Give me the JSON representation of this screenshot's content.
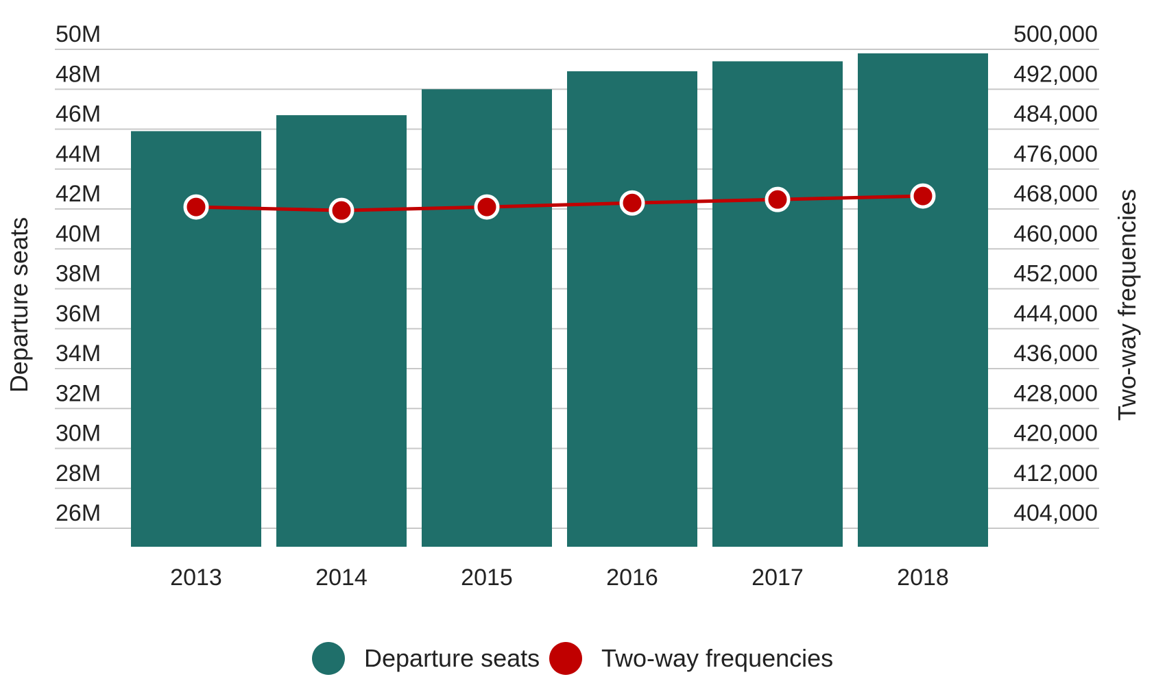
{
  "chart_data": {
    "type": "bar",
    "categories": [
      "2013",
      "2014",
      "2015",
      "2016",
      "2017",
      "2018"
    ],
    "series": [
      {
        "name": "Departure seats",
        "type": "bar",
        "axis": "left",
        "values": [
          45.9,
          46.7,
          48.0,
          48.9,
          49.4,
          49.8
        ],
        "color": "#1f6f6a"
      },
      {
        "name": "Two-way frequencies",
        "type": "line",
        "axis": "right",
        "values": [
          468400,
          467700,
          468400,
          469200,
          469900,
          470600
        ],
        "color": "#c00000"
      }
    ],
    "y_left": {
      "label": "Departure seats",
      "ylim": [
        24,
        50
      ],
      "ticks": [
        26,
        28,
        30,
        32,
        34,
        36,
        38,
        40,
        42,
        44,
        46,
        48,
        50
      ],
      "tick_labels": [
        "26M",
        "28M",
        "30M",
        "32M",
        "34M",
        "36M",
        "38M",
        "40M",
        "42M",
        "44M",
        "46M",
        "48M",
        "50M"
      ]
    },
    "y_right": {
      "label": "Two-way frequencies",
      "ticks": [
        404000,
        412000,
        420000,
        428000,
        436000,
        444000,
        452000,
        460000,
        468000,
        476000,
        484000,
        492000,
        500000
      ],
      "tick_labels": [
        "404,000",
        "412,000",
        "420,000",
        "428,000",
        "436,000",
        "444,000",
        "452,000",
        "460,000",
        "468,000",
        "476,000",
        "484,000",
        "492,000",
        "500,000"
      ]
    },
    "grid": true,
    "legend_position": "bottom",
    "legend": [
      "Departure seats",
      "Two-way frequencies"
    ],
    "colors": {
      "bar": "#1f6f6a",
      "line": "#c00000",
      "grid": "#c8c8c8",
      "marker_outline": "#ffffff"
    }
  }
}
